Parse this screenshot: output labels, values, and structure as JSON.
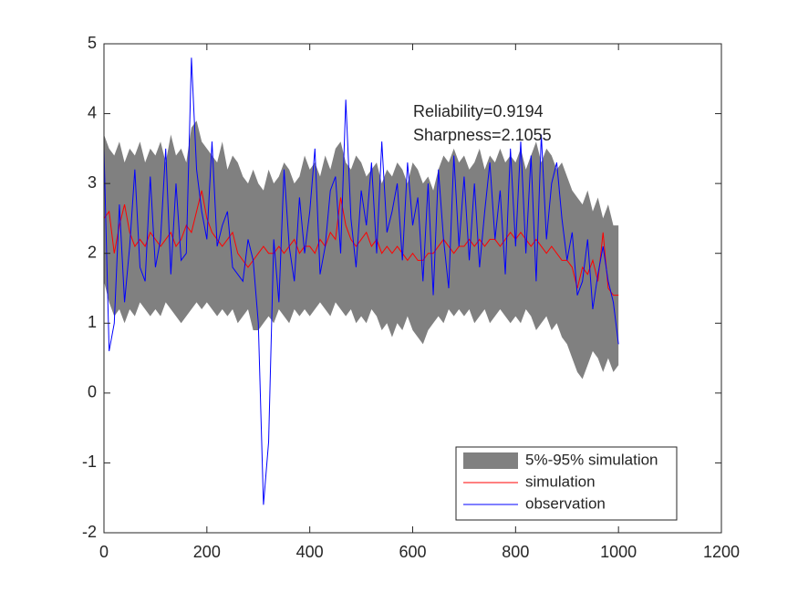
{
  "chart_data": {
    "type": "line",
    "x": [
      0,
      10,
      20,
      30,
      40,
      50,
      60,
      70,
      80,
      90,
      100,
      110,
      120,
      130,
      140,
      150,
      160,
      170,
      180,
      190,
      200,
      210,
      220,
      230,
      240,
      250,
      260,
      270,
      280,
      290,
      300,
      310,
      320,
      330,
      340,
      350,
      360,
      370,
      380,
      390,
      400,
      410,
      420,
      430,
      440,
      450,
      460,
      470,
      480,
      490,
      500,
      510,
      520,
      530,
      540,
      550,
      560,
      570,
      580,
      590,
      600,
      610,
      620,
      630,
      640,
      650,
      660,
      670,
      680,
      690,
      700,
      710,
      720,
      730,
      740,
      750,
      760,
      770,
      780,
      790,
      800,
      810,
      820,
      830,
      840,
      850,
      860,
      870,
      880,
      890,
      900,
      910,
      920,
      930,
      940,
      950,
      960,
      970,
      980,
      990,
      1000
    ],
    "xlim": [
      0,
      1200
    ],
    "xticks": [
      0,
      200,
      400,
      600,
      800,
      1000,
      1200
    ],
    "ylim": [
      -2,
      5
    ],
    "yticks": [
      -2,
      -1,
      0,
      1,
      2,
      3,
      4,
      5
    ],
    "annotations": [
      "Reliability=0.9194",
      "Sharpness=2.1055"
    ],
    "legend": "lower right",
    "band": {
      "name": "5%-95% simulation",
      "color": "#808080",
      "upper": [
        3.7,
        3.5,
        3.4,
        3.6,
        3.3,
        3.5,
        3.4,
        3.6,
        3.3,
        3.5,
        3.4,
        3.6,
        3.3,
        3.7,
        3.4,
        3.5,
        3.3,
        3.8,
        3.9,
        3.6,
        3.5,
        3.4,
        3.3,
        3.6,
        3.2,
        3.4,
        3.3,
        3.1,
        3.0,
        3.2,
        3.0,
        2.9,
        3.2,
        3.0,
        3.1,
        3.3,
        3.2,
        3.0,
        3.1,
        3.4,
        3.2,
        3.3,
        3.1,
        3.4,
        3.2,
        3.5,
        3.6,
        3.3,
        3.2,
        3.4,
        3.3,
        3.1,
        3.2,
        3.3,
        3.0,
        3.2,
        3.1,
        3.3,
        3.2,
        3.0,
        3.3,
        3.2,
        3.0,
        3.1,
        2.9,
        3.2,
        3.4,
        3.3,
        3.5,
        3.3,
        3.4,
        3.2,
        3.3,
        3.5,
        3.2,
        3.4,
        3.3,
        3.5,
        3.3,
        3.4,
        3.3,
        3.5,
        3.2,
        3.4,
        3.6,
        3.3,
        3.5,
        3.4,
        3.2,
        3.3,
        3.1,
        2.9,
        2.8,
        2.7,
        2.9,
        2.6,
        2.8,
        2.5,
        2.7,
        2.4,
        2.4
      ],
      "lower": [
        1.6,
        1.3,
        1.1,
        1.2,
        1.0,
        1.2,
        1.1,
        1.3,
        1.2,
        1.1,
        1.2,
        1.1,
        1.3,
        1.2,
        1.1,
        1.0,
        1.1,
        1.2,
        1.3,
        1.2,
        1.3,
        1.2,
        1.1,
        1.2,
        1.1,
        1.2,
        1.0,
        1.1,
        1.2,
        0.9,
        0.9,
        1.0,
        1.1,
        1.0,
        1.2,
        1.1,
        1.0,
        1.2,
        1.1,
        1.2,
        1.1,
        1.2,
        1.3,
        1.2,
        1.1,
        1.3,
        1.2,
        1.1,
        1.2,
        1.0,
        1.1,
        1.0,
        1.2,
        1.1,
        0.9,
        1.0,
        0.8,
        1.0,
        0.9,
        1.1,
        0.9,
        0.8,
        0.7,
        0.9,
        1.0,
        1.1,
        1.0,
        1.2,
        1.1,
        1.2,
        1.1,
        1.2,
        1.0,
        1.1,
        1.2,
        1.0,
        1.1,
        1.2,
        1.1,
        1.0,
        1.1,
        1.0,
        1.2,
        1.1,
        0.9,
        1.0,
        1.1,
        0.9,
        1.0,
        0.8,
        0.7,
        0.5,
        0.3,
        0.2,
        0.4,
        0.6,
        0.5,
        0.3,
        0.5,
        0.3,
        0.4
      ]
    },
    "series": [
      {
        "name": "simulation",
        "color": "#ff0000",
        "values": [
          2.5,
          2.6,
          2.0,
          2.4,
          2.7,
          2.3,
          2.1,
          2.2,
          2.1,
          2.3,
          2.2,
          2.1,
          2.2,
          2.3,
          2.1,
          2.2,
          2.4,
          2.3,
          2.6,
          2.9,
          2.5,
          2.3,
          2.2,
          2.1,
          2.2,
          2.3,
          2.0,
          1.9,
          1.8,
          1.9,
          2.0,
          2.1,
          2.0,
          2.0,
          2.1,
          2.0,
          2.1,
          2.2,
          2.0,
          2.1,
          2.1,
          2.0,
          2.2,
          2.1,
          2.3,
          2.2,
          2.8,
          2.4,
          2.2,
          2.1,
          2.2,
          2.3,
          2.1,
          2.2,
          2.0,
          2.1,
          2.0,
          2.1,
          2.0,
          1.9,
          2.0,
          1.9,
          1.9,
          2.0,
          2.0,
          2.1,
          2.2,
          2.1,
          2.0,
          2.1,
          2.1,
          2.2,
          2.1,
          2.2,
          2.1,
          2.2,
          2.2,
          2.1,
          2.2,
          2.3,
          2.2,
          2.3,
          2.2,
          2.1,
          2.2,
          2.1,
          2.0,
          2.1,
          2.0,
          1.9,
          1.9,
          1.8,
          1.5,
          1.8,
          1.7,
          1.9,
          1.6,
          2.3,
          1.5,
          1.4,
          1.4
        ]
      },
      {
        "name": "observation",
        "color": "#0000ff",
        "values": [
          3.5,
          0.6,
          1.0,
          2.7,
          1.3,
          2.1,
          3.2,
          1.8,
          1.6,
          3.1,
          1.8,
          2.2,
          3.5,
          1.7,
          3.0,
          1.9,
          2.0,
          4.8,
          3.2,
          2.6,
          2.2,
          3.6,
          2.1,
          2.4,
          2.6,
          1.8,
          1.7,
          1.6,
          2.2,
          1.9,
          1.0,
          -1.6,
          -0.7,
          2.2,
          1.3,
          3.2,
          2.1,
          1.6,
          2.8,
          2.0,
          2.6,
          3.5,
          1.7,
          2.1,
          2.9,
          3.1,
          2.0,
          4.2,
          2.5,
          1.8,
          2.9,
          2.4,
          3.3,
          2.0,
          3.6,
          2.3,
          2.6,
          3.0,
          1.9,
          3.3,
          2.4,
          2.8,
          1.6,
          3.0,
          1.4,
          3.2,
          2.2,
          1.5,
          3.4,
          2.1,
          3.1,
          1.9,
          3.0,
          1.8,
          2.6,
          3.3,
          2.2,
          2.9,
          1.7,
          3.5,
          2.1,
          3.6,
          2.0,
          3.4,
          1.6,
          3.7,
          2.2,
          3.0,
          3.3,
          2.5,
          1.9,
          2.3,
          1.4,
          1.6,
          2.2,
          1.2,
          1.7,
          2.1,
          1.6,
          1.3,
          0.7
        ]
      }
    ]
  }
}
